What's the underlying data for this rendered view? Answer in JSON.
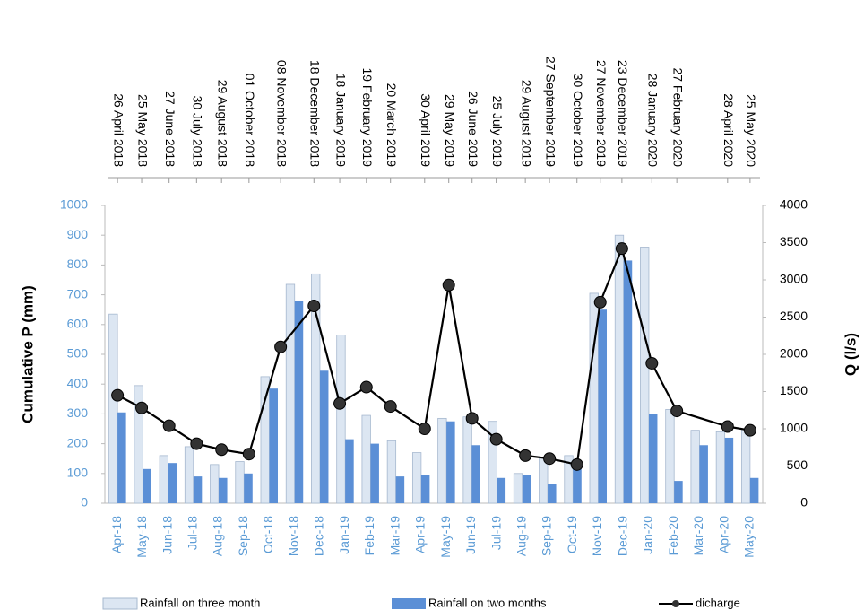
{
  "chart_data": {
    "type": "bar",
    "y_label": "Cumulative P (mm)",
    "y2_label": "Q (l/s)",
    "categories": [
      "Apr-18",
      "May-18",
      "Jun-18",
      "Jul-18",
      "Aug-18",
      "Sep-18",
      "Oct-18",
      "Nov-18",
      "Dec-18",
      "Jan-19",
      "Feb-19",
      "Mar-19",
      "Apr-19",
      "May-19",
      "Jun-19",
      "Jul-19",
      "Aug-19",
      "Sep-19",
      "Oct-19",
      "Nov-19",
      "Dec-19",
      "Jan-20",
      "Feb-20",
      "Mar-20",
      "Apr-20",
      "May-20"
    ],
    "ylim": [
      0,
      1000
    ],
    "yticks": [
      0,
      100,
      200,
      300,
      400,
      500,
      600,
      700,
      800,
      900,
      1000
    ],
    "y2lim": [
      0,
      4000
    ],
    "y2ticks": [
      0,
      500,
      1000,
      1500,
      2000,
      2500,
      3000,
      3500,
      4000
    ],
    "legend": "bottom",
    "series": [
      {
        "name": "Rainfall on three month",
        "type": "bar",
        "color": "#dce6f2",
        "values": [
          635,
          395,
          160,
          190,
          130,
          140,
          425,
          735,
          770,
          565,
          295,
          210,
          170,
          285,
          290,
          275,
          100,
          155,
          160,
          705,
          900,
          860,
          315,
          245,
          240,
          250
        ]
      },
      {
        "name": "Rainfall on two months",
        "type": "bar",
        "color": "#5b8fd6",
        "values": [
          305,
          115,
          135,
          90,
          85,
          100,
          385,
          680,
          445,
          215,
          200,
          90,
          95,
          275,
          195,
          85,
          95,
          65,
          145,
          650,
          815,
          300,
          75,
          195,
          220,
          85
        ]
      },
      {
        "name": "dicharge",
        "type": "line",
        "axis": "y2",
        "color": "#000000",
        "x": [
          "26 April 2018",
          "25 May 2018",
          "27 June 2018",
          "30 July 2018",
          "29 August 2018",
          "01 October 2018",
          "08 November 2018",
          "18 December 2018",
          "18 January 2019",
          "19 February 2019",
          "20 March 2019",
          "30 April 2019",
          "29 May 2019",
          "26 June 2019",
          "25 July 2019",
          "29 August 2019",
          "27 September 2019",
          "30 October 2019",
          "27 November 2019",
          "23 December 2019",
          "28 January 2020",
          "27 February 2020",
          "28 April 2020",
          "25 May 2020"
        ],
        "values": [
          1450,
          1280,
          1040,
          800,
          720,
          660,
          2100,
          2650,
          1340,
          1560,
          1300,
          1000,
          2930,
          1140,
          860,
          640,
          600,
          520,
          2700,
          3420,
          1880,
          1240,
          1030,
          980
        ]
      }
    ]
  }
}
